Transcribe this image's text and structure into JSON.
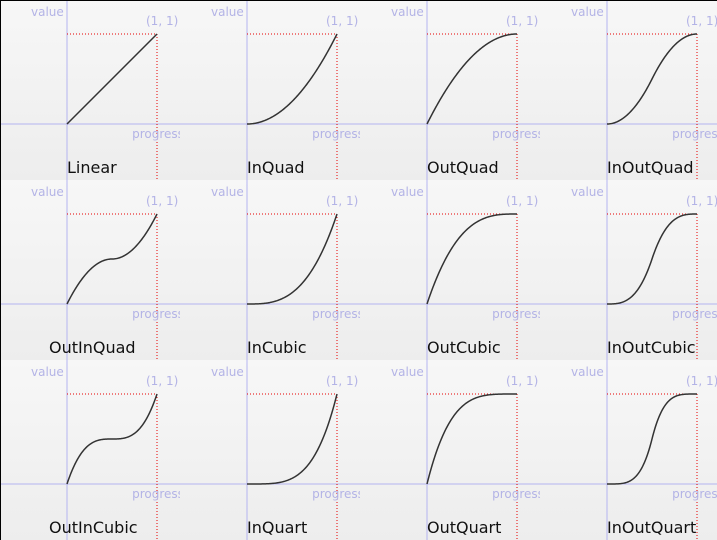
{
  "labels": {
    "value": "value",
    "progress": "progress",
    "point": "(1, 1)"
  },
  "colors": {
    "axis": "#b4b4f0",
    "guide": "#e60000",
    "curve": "#333333",
    "label_text": "#b3b3e6"
  },
  "curves": [
    {
      "name": "Linear"
    },
    {
      "name": "InQuad"
    },
    {
      "name": "OutQuad"
    },
    {
      "name": "InOutQuad"
    },
    {
      "name": "OutInQuad"
    },
    {
      "name": "InCubic"
    },
    {
      "name": "OutCubic"
    },
    {
      "name": "InOutCubic"
    },
    {
      "name": "OutInCubic"
    },
    {
      "name": "InQuart"
    },
    {
      "name": "OutQuart"
    },
    {
      "name": "InOutQuart"
    }
  ]
}
